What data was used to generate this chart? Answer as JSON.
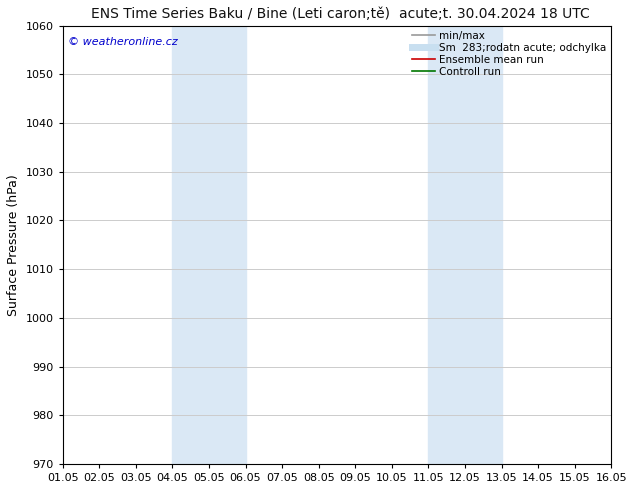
{
  "title_left": "ENS Time Series Baku / Bine (Leti caron;tě)",
  "title_right": "acute;t. 30.04.2024 18 UTC",
  "ylabel": "Surface Pressure (hPa)",
  "ylim": [
    970,
    1060
  ],
  "yticks": [
    970,
    980,
    990,
    1000,
    1010,
    1020,
    1030,
    1040,
    1050,
    1060
  ],
  "xtick_labels": [
    "01.05",
    "02.05",
    "03.05",
    "04.05",
    "05.05",
    "06.05",
    "07.05",
    "08.05",
    "09.05",
    "10.05",
    "11.05",
    "12.05",
    "13.05",
    "14.05",
    "15.05",
    "16.05"
  ],
  "shaded_regions": [
    {
      "xmin": 3.0,
      "xmax": 5.0,
      "color": "#dae8f5"
    },
    {
      "xmin": 10.0,
      "xmax": 12.0,
      "color": "#dae8f5"
    }
  ],
  "watermark": "© weatheronline.cz",
  "watermark_color": "#0000cc",
  "legend_items": [
    {
      "label": "min/max",
      "color": "#999999",
      "lw": 1.2,
      "ls": "-"
    },
    {
      "label": "Sm  283;rodatn acute; odchylka",
      "color": "#c8dff0",
      "lw": 5,
      "ls": "-"
    },
    {
      "label": "Ensemble mean run",
      "color": "#cc0000",
      "lw": 1.2,
      "ls": "-"
    },
    {
      "label": "Controll run",
      "color": "#007700",
      "lw": 1.2,
      "ls": "-"
    }
  ],
  "bg_color": "#ffffff",
  "plot_bg_color": "#ffffff",
  "grid_color": "#cccccc",
  "title_fontsize": 10,
  "ylabel_fontsize": 9,
  "tick_fontsize": 8,
  "watermark_fontsize": 8,
  "legend_fontsize": 7.5
}
